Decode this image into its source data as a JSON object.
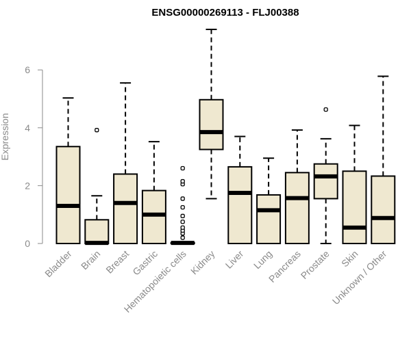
{
  "chart_data": {
    "type": "box",
    "title": "ENSG00000269113 - FLJ00388",
    "ylabel": "Expression",
    "xlabel": "",
    "ylim": [
      0,
      7.5
    ],
    "yticks": [
      0,
      2,
      4,
      6
    ],
    "grid": false,
    "legend": "none",
    "box_fill": "#efe8d0",
    "box_stroke": "#000000",
    "title_color": "#000000",
    "axis_text_color": "#8a8a8a",
    "categories": [
      "Bladder",
      "Brain",
      "Breast",
      "Gastric",
      "Hematopoietic cells",
      "Kidney",
      "Liver",
      "Lung",
      "Pancreas",
      "Prostate",
      "Skin",
      "Unknown / Other"
    ],
    "boxes": [
      {
        "category": "Bladder",
        "min": 0,
        "q1": 0,
        "median": 1.3,
        "q3": 3.35,
        "max": 5.03,
        "outliers": []
      },
      {
        "category": "Brain",
        "min": 0,
        "q1": 0,
        "median": 0.02,
        "q3": 0.82,
        "max": 1.65,
        "outliers": [
          3.92
        ]
      },
      {
        "category": "Breast",
        "min": 0,
        "q1": 0,
        "median": 1.4,
        "q3": 2.4,
        "max": 5.55,
        "outliers": []
      },
      {
        "category": "Gastric",
        "min": 0,
        "q1": 0,
        "median": 1.0,
        "q3": 1.83,
        "max": 3.52,
        "outliers": []
      },
      {
        "category": "Hematopoietic cells",
        "min": 0,
        "q1": 0,
        "median": 0.02,
        "q3": 0.03,
        "max": 0.05,
        "outliers": [
          0.2,
          0.35,
          0.45,
          0.55,
          0.75,
          0.95,
          1.25,
          1.55,
          2.05,
          2.15,
          2.6
        ]
      },
      {
        "category": "Kidney",
        "min": 1.55,
        "q1": 3.25,
        "median": 3.85,
        "q3": 4.97,
        "max": 7.4,
        "outliers": []
      },
      {
        "category": "Liver",
        "min": 0,
        "q1": 0,
        "median": 1.75,
        "q3": 2.65,
        "max": 3.7,
        "outliers": []
      },
      {
        "category": "Lung",
        "min": 0,
        "q1": 0,
        "median": 1.15,
        "q3": 1.68,
        "max": 2.95,
        "outliers": []
      },
      {
        "category": "Pancreas",
        "min": 0,
        "q1": 0,
        "median": 1.57,
        "q3": 2.45,
        "max": 3.92,
        "outliers": []
      },
      {
        "category": "Prostate",
        "min": 0,
        "q1": 1.55,
        "median": 2.32,
        "q3": 2.75,
        "max": 3.62,
        "outliers": [
          4.63
        ]
      },
      {
        "category": "Skin",
        "min": 0,
        "q1": 0,
        "median": 0.55,
        "q3": 2.5,
        "max": 4.08,
        "outliers": []
      },
      {
        "category": "Unknown / Other",
        "min": 0,
        "q1": 0,
        "median": 0.88,
        "q3": 2.33,
        "max": 5.78,
        "outliers": []
      }
    ]
  }
}
